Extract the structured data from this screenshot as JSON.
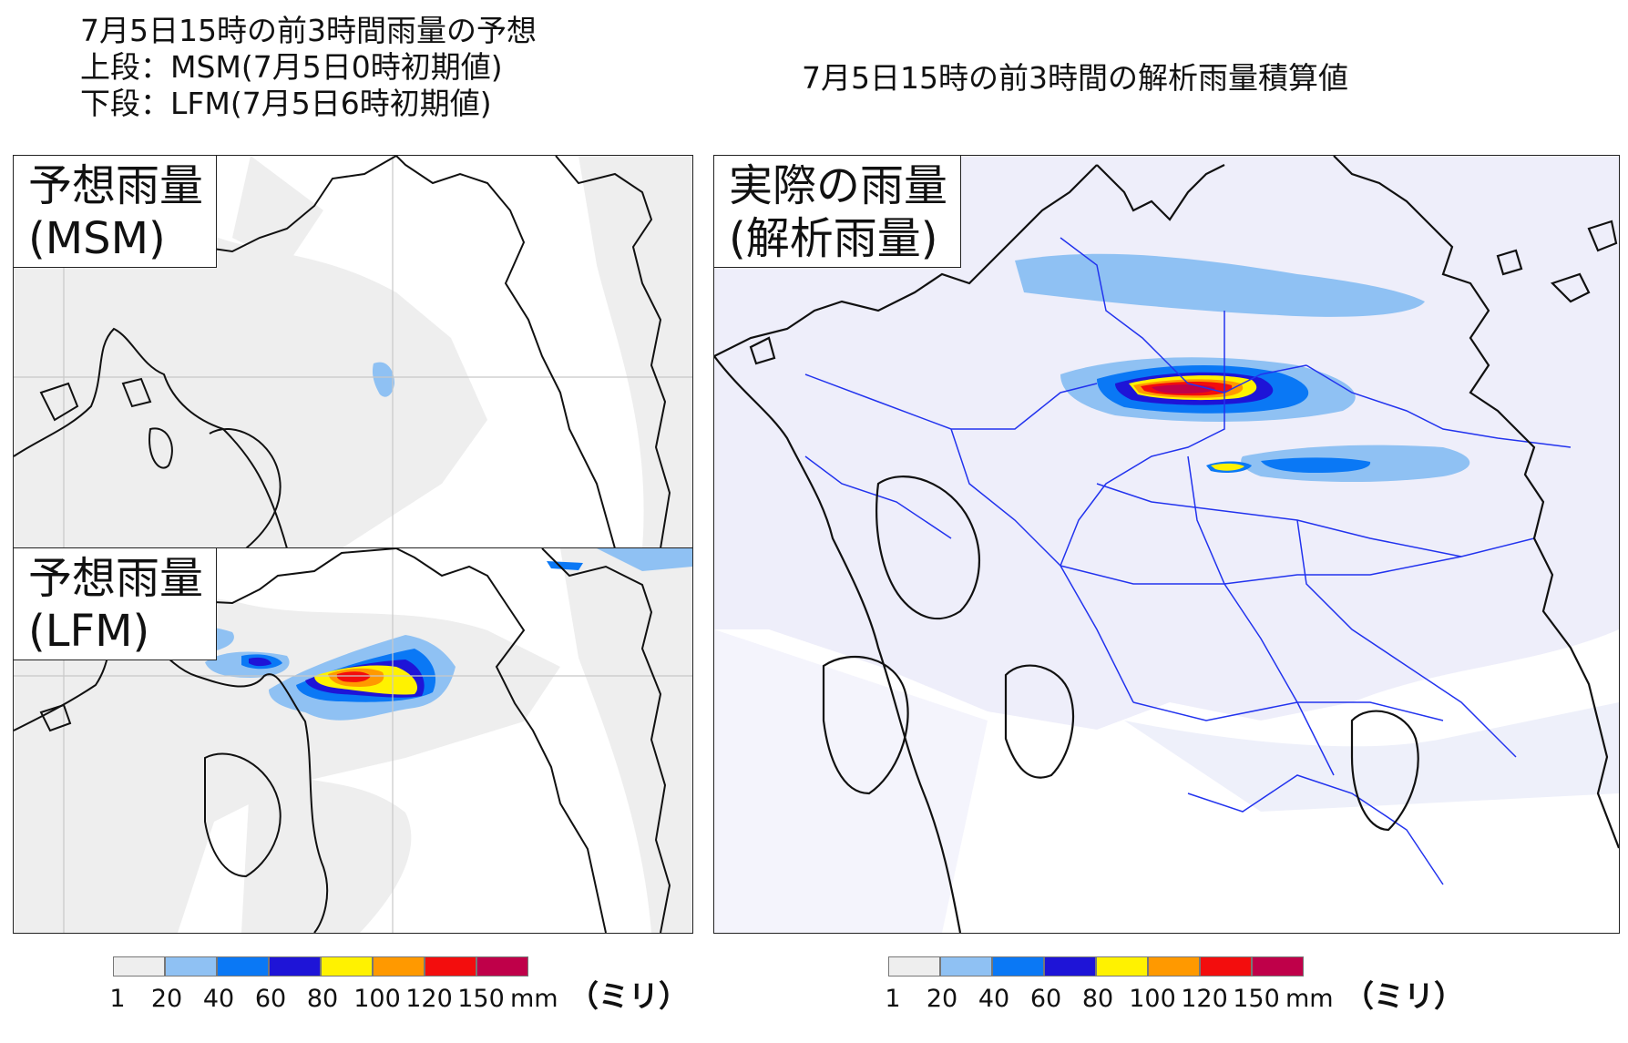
{
  "left_header": {
    "line1": "7月5日15時の前3時間雨量の予想",
    "line2": "上段：MSM(7月5日0時初期値)",
    "line3": "下段：LFM(7月5日6時初期値)"
  },
  "right_header": {
    "title": "7月5日15時の前3時間の解析雨量積算値"
  },
  "panels": {
    "msm": {
      "label_line1": "予想雨量",
      "label_line2": "(MSM)"
    },
    "lfm": {
      "label_line1": "予想雨量",
      "label_line2": "(LFM)"
    },
    "analysis": {
      "label_line1": "実際の雨量",
      "label_line2": "(解析雨量)"
    }
  },
  "colorbar": {
    "ticks": [
      "1",
      "20",
      "40",
      "60",
      "80",
      "100",
      "120",
      "150"
    ],
    "unit": "mm",
    "unit_note": "（ミリ）",
    "colors": [
      "#eeeeee",
      "#8fc1f3",
      "#0a78f5",
      "#1e14d7",
      "#fff200",
      "#ff9900",
      "#f30d0d",
      "#bf0049"
    ]
  }
}
